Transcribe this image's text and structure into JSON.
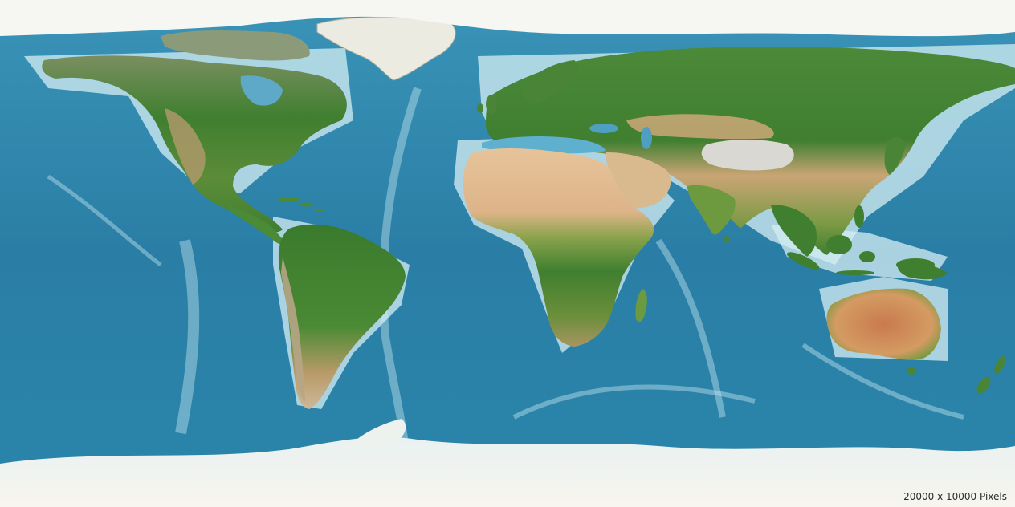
{
  "map": {
    "caption": "20000 x 10000 Pixels",
    "colors": {
      "ocean_deep": "#1f6f95",
      "ocean_mid": "#2e87ad",
      "ocean_shelf": "#cfe9f2",
      "land_green": "#3f7f2f",
      "land_dark_green": "#2f6a27",
      "land_tan": "#c9a473",
      "land_desert": "#e2c29a",
      "land_red": "#c9774a",
      "ice": "#f4f2ea",
      "mountain": "#d8d6cf"
    }
  }
}
